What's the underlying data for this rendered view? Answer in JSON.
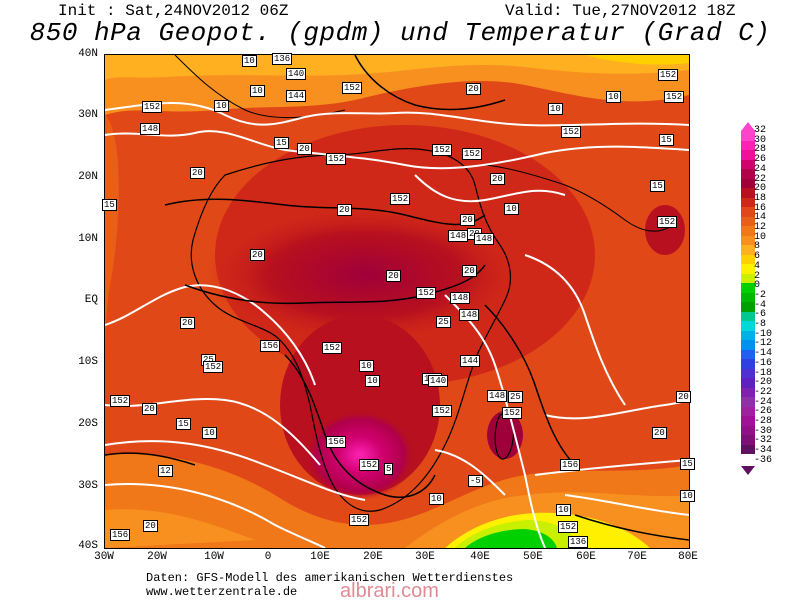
{
  "header": {
    "init": "Init : Sat,24NOV2012 06Z",
    "valid": "Valid: Tue,27NOV2012 18Z",
    "title": "850 hPa Geopot. (gpdm) und Temperatur (Grad C)"
  },
  "axes": {
    "lat_labels": [
      "40N",
      "30N",
      "20N",
      "10N",
      "EQ",
      "10S",
      "20S",
      "30S",
      "40S"
    ],
    "lon_labels": [
      "30W",
      "20W",
      "10W",
      "0",
      "10E",
      "20E",
      "30E",
      "40E",
      "50E",
      "60E",
      "70E",
      "80E"
    ]
  },
  "colorbar": {
    "labels": [
      "32",
      "30",
      "28",
      "26",
      "24",
      "22",
      "20",
      "18",
      "16",
      "14",
      "12",
      "10",
      "8",
      "6",
      "4",
      "2",
      "0",
      "-2",
      "-4",
      "-6",
      "-8",
      "-10",
      "-12",
      "-14",
      "-16",
      "-18",
      "-20",
      "-22",
      "-24",
      "-26",
      "-28",
      "-30",
      "-32",
      "-34",
      "-36"
    ],
    "colors": [
      "#ff44cc",
      "#ff22b4",
      "#f0109a",
      "#d0006f",
      "#b0004a",
      "#a0003a",
      "#b8101e",
      "#d02818",
      "#e04818",
      "#e86018",
      "#f07818",
      "#f89020",
      "#ffb020",
      "#ffd000",
      "#fff000",
      "#c8f000",
      "#00d000",
      "#00b800",
      "#00a000",
      "#00c890",
      "#00d8d8",
      "#00b0e8",
      "#0090f0",
      "#2060f0",
      "#3040e0",
      "#5030d0",
      "#6020c0",
      "#8020b0",
      "#9030a8",
      "#a020a0",
      "#a01098",
      "#901088",
      "#801078",
      "#601060"
    ],
    "top_color": "#ff44cc",
    "bottom_color": "#601060"
  },
  "map_labels": [
    {
      "t": "136"
    },
    {
      "t": "10"
    },
    {
      "t": "140"
    },
    {
      "t": "144"
    },
    {
      "t": "10"
    },
    {
      "t": "152"
    },
    {
      "t": "10"
    },
    {
      "t": "152"
    },
    {
      "t": "148"
    },
    {
      "t": "15"
    },
    {
      "t": "20"
    },
    {
      "t": "152"
    },
    {
      "t": "20"
    },
    {
      "t": "15"
    },
    {
      "t": "152"
    },
    {
      "t": "20"
    },
    {
      "t": "20"
    },
    {
      "t": "20"
    },
    {
      "t": "152"
    },
    {
      "t": "152"
    },
    {
      "t": "20"
    },
    {
      "t": "20"
    },
    {
      "t": "148"
    },
    {
      "t": "148"
    },
    {
      "t": "20"
    },
    {
      "t": "20"
    },
    {
      "t": "152"
    },
    {
      "t": "20"
    },
    {
      "t": "10"
    },
    {
      "t": "10"
    },
    {
      "t": "152"
    },
    {
      "t": "15"
    },
    {
      "t": "152"
    },
    {
      "t": "15"
    },
    {
      "t": "10"
    },
    {
      "t": "25"
    },
    {
      "t": "148"
    },
    {
      "t": "148"
    },
    {
      "t": "20"
    },
    {
      "t": "25"
    },
    {
      "t": "152"
    },
    {
      "t": "156"
    },
    {
      "t": "152"
    },
    {
      "t": "10"
    },
    {
      "t": "10"
    },
    {
      "t": "136"
    },
    {
      "t": "140"
    },
    {
      "t": "144"
    },
    {
      "t": "148"
    },
    {
      "t": "25"
    },
    {
      "t": "152"
    },
    {
      "t": "152"
    },
    {
      "t": "156"
    },
    {
      "t": "152"
    },
    {
      "t": "152"
    },
    {
      "t": "152"
    },
    {
      "t": "20"
    },
    {
      "t": "15"
    },
    {
      "t": "10"
    },
    {
      "t": "12"
    },
    {
      "t": "156"
    },
    {
      "t": "20"
    },
    {
      "t": "5"
    },
    {
      "t": "-5"
    },
    {
      "t": "136"
    },
    {
      "t": "10"
    },
    {
      "t": "10"
    },
    {
      "t": "152"
    },
    {
      "t": "156"
    },
    {
      "t": "15"
    },
    {
      "t": "10"
    },
    {
      "t": "20"
    },
    {
      "t": "20"
    },
    {
      "t": "152"
    },
    {
      "t": "152"
    }
  ],
  "footer": {
    "line1": "Daten: GFS-Modell des amerikanischen Wetterdienstes",
    "line2": "www.wetterzentrale.de"
  },
  "watermark": "albrari.com"
}
